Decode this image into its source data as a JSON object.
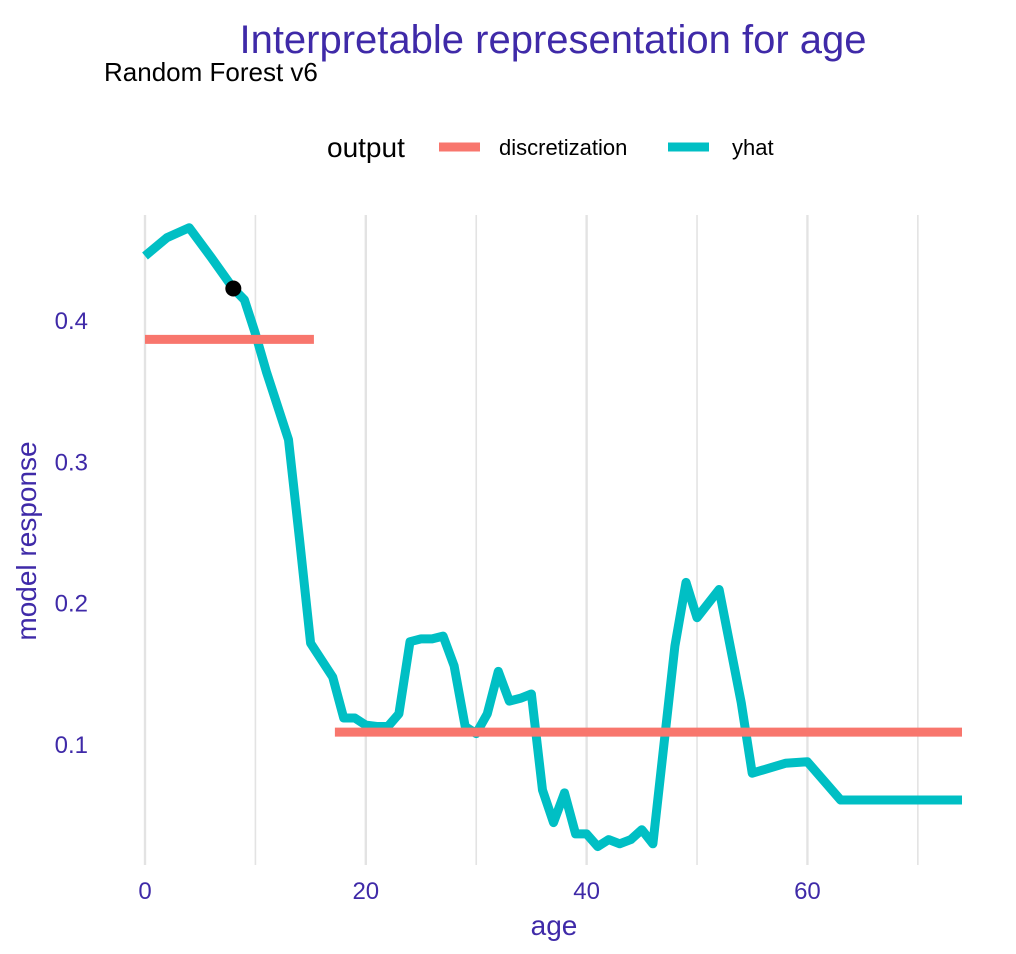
{
  "colors": {
    "title": "#3f2aa8",
    "subtitle": "#000000",
    "axis_text": "#3f2aa8",
    "grid": "#e3e3e3",
    "discretization": "#f8766d",
    "yhat": "#00bfc4",
    "point": "#000000"
  },
  "chart_data": {
    "type": "line",
    "title": "Interpretable representation for age",
    "subtitle": "Random Forest v6",
    "xlabel": "age",
    "ylabel": "model response",
    "xlim": [
      0,
      74
    ],
    "ylim": [
      0.015,
      0.475
    ],
    "x_ticks": [
      0,
      20,
      40,
      60
    ],
    "y_ticks": [
      0.1,
      0.2,
      0.3,
      0.4
    ],
    "x_tick_labels": [
      "0",
      "20",
      "40",
      "60"
    ],
    "y_tick_labels": [
      "0.1",
      "0.2",
      "0.3",
      "0.4"
    ],
    "grid": "vertical",
    "legend": {
      "title": "output",
      "position": "top",
      "items": [
        {
          "label": "discretization",
          "series": "discretization"
        },
        {
          "label": "yhat",
          "series": "yhat"
        }
      ]
    },
    "series": [
      {
        "name": "discretization",
        "segments": [
          {
            "x": [
              0,
              15.3
            ],
            "y": [
              0.387,
              0.387
            ]
          },
          {
            "x": [
              17.2,
              74
            ],
            "y": [
              0.109,
              0.109
            ]
          }
        ]
      },
      {
        "name": "yhat",
        "x": [
          0,
          2,
          4,
          6,
          8,
          9,
          10,
          11,
          13,
          14,
          15,
          16,
          17,
          18,
          19,
          20,
          21,
          22,
          23,
          24,
          25,
          26,
          27,
          28,
          29,
          30,
          31,
          32,
          33,
          34,
          35,
          36,
          37,
          38,
          39,
          40,
          41,
          42,
          43,
          44,
          45,
          46,
          47,
          48,
          49,
          50,
          52,
          54,
          55,
          58,
          60,
          63,
          66,
          74
        ],
        "y": [
          0.446,
          0.459,
          0.466,
          0.445,
          0.423,
          0.415,
          0.391,
          0.364,
          0.316,
          0.245,
          0.172,
          0.16,
          0.148,
          0.119,
          0.119,
          0.114,
          0.113,
          0.113,
          0.122,
          0.173,
          0.175,
          0.175,
          0.177,
          0.156,
          0.113,
          0.108,
          0.122,
          0.152,
          0.131,
          0.133,
          0.136,
          0.068,
          0.045,
          0.066,
          0.037,
          0.037,
          0.028,
          0.033,
          0.03,
          0.033,
          0.04,
          0.03,
          0.1,
          0.17,
          0.215,
          0.19,
          0.21,
          0.13,
          0.08,
          0.087,
          0.088,
          0.061,
          0.061,
          0.061
        ]
      }
    ],
    "highlight_point": {
      "x": 8,
      "y": 0.423
    }
  }
}
